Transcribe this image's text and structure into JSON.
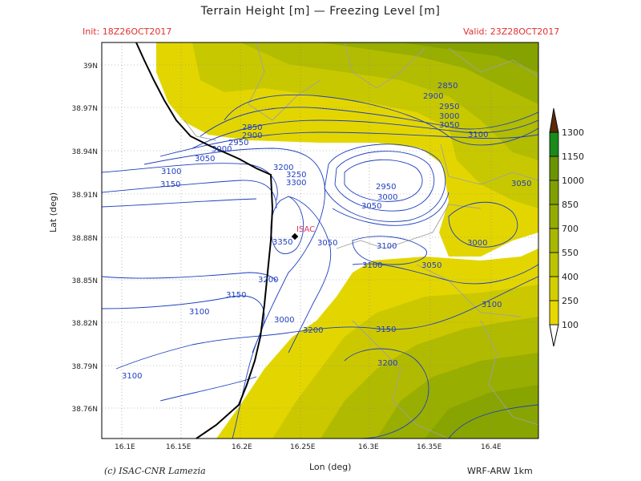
{
  "header": {
    "title": "Terrain Height [m] — Freezing Level [m]",
    "init": "Init: 18Z26OCT2017",
    "valid": "Valid: 23Z28OCT2017"
  },
  "footer": {
    "credit": "(c) ISAC-CNR Lamezia",
    "model": "WRF-ARW 1km"
  },
  "axes": {
    "xlabel": "Lon (deg)",
    "ylabel": "Lat (deg)",
    "x_ticks": [
      "16.1E",
      "16.15E",
      "16.2E",
      "16.25E",
      "16.3E",
      "16.35E",
      "16.4E"
    ],
    "y_ticks": [
      "39N",
      "38.97N",
      "38.94N",
      "38.91N",
      "38.88N",
      "38.85N",
      "38.82N",
      "38.79N",
      "38.76N"
    ]
  },
  "colorbar": {
    "levels": [
      "100",
      "250",
      "400",
      "550",
      "700",
      "850",
      "1000",
      "1150",
      "1300"
    ],
    "colors": [
      "#e6d800",
      "#d2cf00",
      "#bcc400",
      "#a8b800",
      "#94ac00",
      "#80a000",
      "#6c9400",
      "#1a8a1a",
      "#5a2a0a"
    ]
  },
  "marker": {
    "label": "ISAC"
  },
  "contour_labels": [
    "2850",
    "2900",
    "2950",
    "3000",
    "3050",
    "3100",
    "3150",
    "3200",
    "3250",
    "3300",
    "3350"
  ]
}
